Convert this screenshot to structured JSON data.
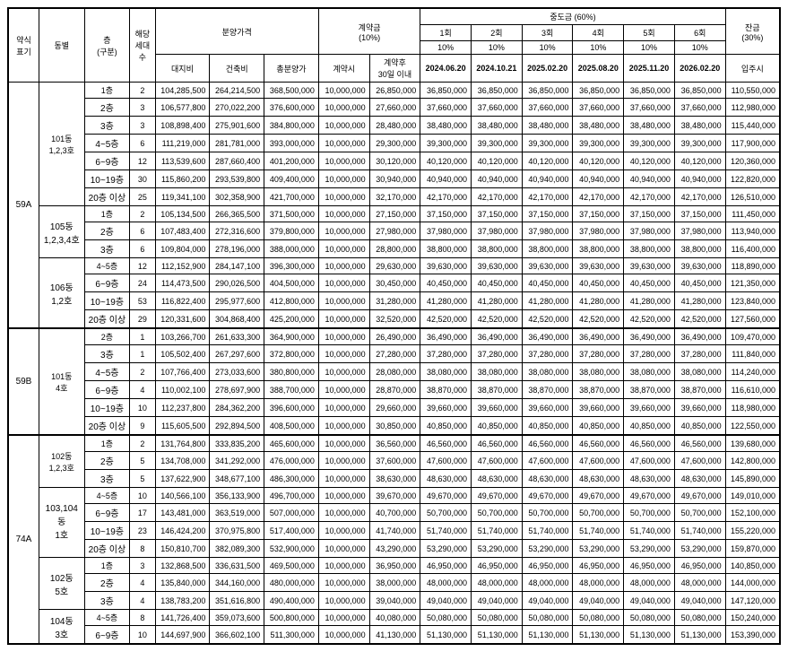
{
  "headers": {
    "type_label": "약식\n표기",
    "dong_label": "동별",
    "floor_label": "층\n(구분)",
    "hh_label": "해당\n세대\n수",
    "price_group": "분양가격",
    "deposit_group": "계약금\n(10%)",
    "intermediate_group": "중도금  (60%)",
    "balance_group": "잔금\n(30%)",
    "land": "대지비",
    "const": "건축비",
    "total": "총분양가",
    "at_contract": "계약시",
    "within30": "계약후\n30일 이내",
    "rounds": [
      {
        "label": "1회",
        "pct": "10%",
        "date": "2024.06.20"
      },
      {
        "label": "2회",
        "pct": "10%",
        "date": "2024.10.21"
      },
      {
        "label": "3회",
        "pct": "10%",
        "date": "2025.02.20"
      },
      {
        "label": "4회",
        "pct": "10%",
        "date": "2025.08.20"
      },
      {
        "label": "5회",
        "pct": "10%",
        "date": "2025.11.20"
      },
      {
        "label": "6회",
        "pct": "10%",
        "date": "2026.02.20"
      }
    ],
    "movein": "입주시"
  },
  "types": [
    {
      "type": "59A",
      "dong_groups": [
        {
          "dong": "101동\n1,2,3호",
          "rows": [
            {
              "floor": "1층",
              "hh": "2",
              "land": "104,285,500",
              "const": "264,214,500",
              "total": "368,500,000",
              "c1": "10,000,000",
              "c2": "26,850,000",
              "i": "36,850,000",
              "bal": "110,550,000"
            },
            {
              "floor": "2층",
              "hh": "3",
              "land": "106,577,800",
              "const": "270,022,200",
              "total": "376,600,000",
              "c1": "10,000,000",
              "c2": "27,660,000",
              "i": "37,660,000",
              "bal": "112,980,000"
            },
            {
              "floor": "3층",
              "hh": "3",
              "land": "108,898,400",
              "const": "275,901,600",
              "total": "384,800,000",
              "c1": "10,000,000",
              "c2": "28,480,000",
              "i": "38,480,000",
              "bal": "115,440,000"
            },
            {
              "floor": "4~5층",
              "hh": "6",
              "land": "111,219,000",
              "const": "281,781,000",
              "total": "393,000,000",
              "c1": "10,000,000",
              "c2": "29,300,000",
              "i": "39,300,000",
              "bal": "117,900,000"
            },
            {
              "floor": "6~9층",
              "hh": "12",
              "land": "113,539,600",
              "const": "287,660,400",
              "total": "401,200,000",
              "c1": "10,000,000",
              "c2": "30,120,000",
              "i": "40,120,000",
              "bal": "120,360,000"
            },
            {
              "floor": "10~19층",
              "hh": "30",
              "land": "115,860,200",
              "const": "293,539,800",
              "total": "409,400,000",
              "c1": "10,000,000",
              "c2": "30,940,000",
              "i": "40,940,000",
              "bal": "122,820,000"
            },
            {
              "floor": "20층 이상",
              "hh": "25",
              "land": "119,341,100",
              "const": "302,358,900",
              "total": "421,700,000",
              "c1": "10,000,000",
              "c2": "32,170,000",
              "i": "42,170,000",
              "bal": "126,510,000"
            }
          ]
        },
        {
          "dong": "105동\n1,2,3,4호",
          "rows": [
            {
              "floor": "1층",
              "hh": "2",
              "land": "105,134,500",
              "const": "266,365,500",
              "total": "371,500,000",
              "c1": "10,000,000",
              "c2": "27,150,000",
              "i": "37,150,000",
              "bal": "111,450,000"
            },
            {
              "floor": "2층",
              "hh": "6",
              "land": "107,483,400",
              "const": "272,316,600",
              "total": "379,800,000",
              "c1": "10,000,000",
              "c2": "27,980,000",
              "i": "37,980,000",
              "bal": "113,940,000"
            },
            {
              "floor": "3층",
              "hh": "6",
              "land": "109,804,000",
              "const": "278,196,000",
              "total": "388,000,000",
              "c1": "10,000,000",
              "c2": "28,800,000",
              "i": "38,800,000",
              "bal": "116,400,000"
            }
          ]
        },
        {
          "dong": "106동\n1,2호",
          "rows": [
            {
              "floor": "4~5층",
              "hh": "12",
              "land": "112,152,900",
              "const": "284,147,100",
              "total": "396,300,000",
              "c1": "10,000,000",
              "c2": "29,630,000",
              "i": "39,630,000",
              "bal": "118,890,000"
            },
            {
              "floor": "6~9층",
              "hh": "24",
              "land": "114,473,500",
              "const": "290,026,500",
              "total": "404,500,000",
              "c1": "10,000,000",
              "c2": "30,450,000",
              "i": "40,450,000",
              "bal": "121,350,000"
            },
            {
              "floor": "10~19층",
              "hh": "53",
              "land": "116,822,400",
              "const": "295,977,600",
              "total": "412,800,000",
              "c1": "10,000,000",
              "c2": "31,280,000",
              "i": "41,280,000",
              "bal": "123,840,000"
            },
            {
              "floor": "20층 이상",
              "hh": "29",
              "land": "120,331,600",
              "const": "304,868,400",
              "total": "425,200,000",
              "c1": "10,000,000",
              "c2": "32,520,000",
              "i": "42,520,000",
              "bal": "127,560,000"
            }
          ]
        }
      ]
    },
    {
      "type": "59B",
      "dong_groups": [
        {
          "dong": "101동\n4호",
          "rows": [
            {
              "floor": "2층",
              "hh": "1",
              "land": "103,266,700",
              "const": "261,633,300",
              "total": "364,900,000",
              "c1": "10,000,000",
              "c2": "26,490,000",
              "i": "36,490,000",
              "bal": "109,470,000"
            },
            {
              "floor": "3층",
              "hh": "1",
              "land": "105,502,400",
              "const": "267,297,600",
              "total": "372,800,000",
              "c1": "10,000,000",
              "c2": "27,280,000",
              "i": "37,280,000",
              "bal": "111,840,000"
            },
            {
              "floor": "4~5층",
              "hh": "2",
              "land": "107,766,400",
              "const": "273,033,600",
              "total": "380,800,000",
              "c1": "10,000,000",
              "c2": "28,080,000",
              "i": "38,080,000",
              "bal": "114,240,000"
            },
            {
              "floor": "6~9층",
              "hh": "4",
              "land": "110,002,100",
              "const": "278,697,900",
              "total": "388,700,000",
              "c1": "10,000,000",
              "c2": "28,870,000",
              "i": "38,870,000",
              "bal": "116,610,000"
            },
            {
              "floor": "10~19층",
              "hh": "10",
              "land": "112,237,800",
              "const": "284,362,200",
              "total": "396,600,000",
              "c1": "10,000,000",
              "c2": "29,660,000",
              "i": "39,660,000",
              "bal": "118,980,000"
            },
            {
              "floor": "20층 이상",
              "hh": "9",
              "land": "115,605,500",
              "const": "292,894,500",
              "total": "408,500,000",
              "c1": "10,000,000",
              "c2": "30,850,000",
              "i": "40,850,000",
              "bal": "122,550,000"
            }
          ]
        }
      ]
    },
    {
      "type": "74A",
      "dong_groups": [
        {
          "dong": "102동\n1,2,3호",
          "rows": [
            {
              "floor": "1층",
              "hh": "2",
              "land": "131,764,800",
              "const": "333,835,200",
              "total": "465,600,000",
              "c1": "10,000,000",
              "c2": "36,560,000",
              "i": "46,560,000",
              "bal": "139,680,000"
            },
            {
              "floor": "2층",
              "hh": "5",
              "land": "134,708,000",
              "const": "341,292,000",
              "total": "476,000,000",
              "c1": "10,000,000",
              "c2": "37,600,000",
              "i": "47,600,000",
              "bal": "142,800,000"
            },
            {
              "floor": "3층",
              "hh": "5",
              "land": "137,622,900",
              "const": "348,677,100",
              "total": "486,300,000",
              "c1": "10,000,000",
              "c2": "38,630,000",
              "i": "48,630,000",
              "bal": "145,890,000"
            }
          ]
        },
        {
          "dong": "103,104동\n1호",
          "rows": [
            {
              "floor": "4~5층",
              "hh": "10",
              "land": "140,566,100",
              "const": "356,133,900",
              "total": "496,700,000",
              "c1": "10,000,000",
              "c2": "39,670,000",
              "i": "49,670,000",
              "bal": "149,010,000"
            },
            {
              "floor": "6~9층",
              "hh": "17",
              "land": "143,481,000",
              "const": "363,519,000",
              "total": "507,000,000",
              "c1": "10,000,000",
              "c2": "40,700,000",
              "i": "50,700,000",
              "bal": "152,100,000"
            },
            {
              "floor": "10~19층",
              "hh": "23",
              "land": "146,424,200",
              "const": "370,975,800",
              "total": "517,400,000",
              "c1": "10,000,000",
              "c2": "41,740,000",
              "i": "51,740,000",
              "bal": "155,220,000"
            },
            {
              "floor": "20층 이상",
              "hh": "8",
              "land": "150,810,700",
              "const": "382,089,300",
              "total": "532,900,000",
              "c1": "10,000,000",
              "c2": "43,290,000",
              "i": "53,290,000",
              "bal": "159,870,000"
            }
          ]
        },
        {
          "dong": "102동\n5호",
          "rows": [
            {
              "floor": "1층",
              "hh": "3",
              "land": "132,868,500",
              "const": "336,631,500",
              "total": "469,500,000",
              "c1": "10,000,000",
              "c2": "36,950,000",
              "i": "46,950,000",
              "bal": "140,850,000"
            },
            {
              "floor": "2층",
              "hh": "4",
              "land": "135,840,000",
              "const": "344,160,000",
              "total": "480,000,000",
              "c1": "10,000,000",
              "c2": "38,000,000",
              "i": "48,000,000",
              "bal": "144,000,000"
            },
            {
              "floor": "3층",
              "hh": "4",
              "land": "138,783,200",
              "const": "351,616,800",
              "total": "490,400,000",
              "c1": "10,000,000",
              "c2": "39,040,000",
              "i": "49,040,000",
              "bal": "147,120,000"
            }
          ]
        },
        {
          "dong": "104동\n3호",
          "rows": [
            {
              "floor": "4~5층",
              "hh": "8",
              "land": "141,726,400",
              "const": "359,073,600",
              "total": "500,800,000",
              "c1": "10,000,000",
              "c2": "40,080,000",
              "i": "50,080,000",
              "bal": "150,240,000"
            },
            {
              "floor": "6~9층",
              "hh": "10",
              "land": "144,697,900",
              "const": "366,602,100",
              "total": "511,300,000",
              "c1": "10,000,000",
              "c2": "41,130,000",
              "i": "51,130,000",
              "bal": "153,390,000"
            }
          ]
        }
      ]
    }
  ]
}
